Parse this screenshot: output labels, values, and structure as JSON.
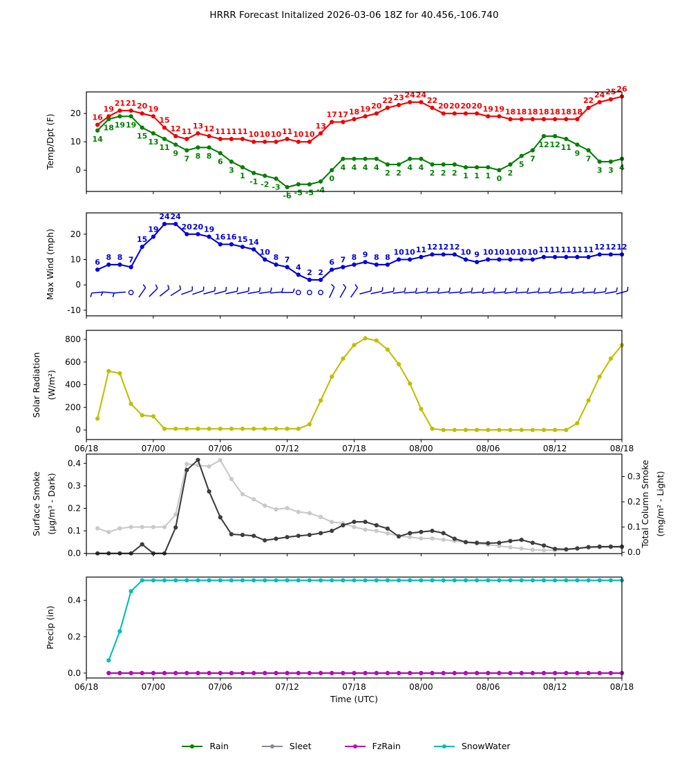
{
  "title": "HRRR Forecast Initalized 2026-03-06 18Z for 40.456,-106.740",
  "x_axis": {
    "label": "Time (UTC)",
    "tick_labels": [
      "06/18",
      "07/00",
      "07/06",
      "07/12",
      "07/18",
      "08/00",
      "08/06",
      "08/12",
      "08/18"
    ],
    "hours_total": 48
  },
  "legend": {
    "items": [
      {
        "label": "Rain",
        "color": "#008000"
      },
      {
        "label": "Sleet",
        "color": "#8c8496"
      },
      {
        "label": "FzRain",
        "color": "#bf00bf"
      },
      {
        "label": "SnowWater",
        "color": "#00bcbc"
      }
    ]
  },
  "chart_data": [
    {
      "type": "line",
      "id": "temp-dpt",
      "ylabel_lines": [
        "Temp/Dpt (F)"
      ],
      "ylim": [
        -7.5,
        27.6
      ],
      "yticks": [
        0,
        10,
        20
      ],
      "ytick_decimals": 0,
      "show_xticklabels": false,
      "point_labels": true,
      "start_hour": 1,
      "series": [
        {
          "name": "temperature",
          "color": "#ee0000",
          "label_offset": -7,
          "values": [
            16,
            19,
            21,
            21,
            20,
            19,
            15,
            12,
            11,
            13,
            12,
            11,
            11,
            11,
            10,
            10,
            10,
            11,
            10,
            10,
            13,
            17,
            17,
            18,
            19,
            20,
            22,
            23,
            24,
            24,
            22,
            20,
            20,
            20,
            20,
            19,
            19,
            18,
            18,
            18,
            18,
            18,
            18,
            18,
            22,
            24,
            25,
            26
          ]
        },
        {
          "name": "dewpoint",
          "color": "#008000",
          "label_offset": 16,
          "values": [
            14,
            18,
            19,
            19,
            15,
            13,
            11,
            9,
            7,
            8,
            8,
            6,
            3,
            1,
            -1,
            -2,
            -3,
            -6,
            -5,
            -5,
            -4,
            0,
            4,
            4,
            4,
            4,
            2,
            2,
            4,
            4,
            2,
            2,
            2,
            1,
            1,
            1,
            0,
            2,
            5,
            7,
            12,
            12,
            11,
            9,
            7,
            3,
            3,
            4
          ]
        }
      ]
    },
    {
      "type": "line+barbs",
      "id": "max-wind",
      "ylabel_lines": [
        "Max Wind (mph)"
      ],
      "ylim": [
        -12.2,
        28.4
      ],
      "yticks": [
        -10,
        0,
        10,
        20
      ],
      "ytick_decimals": 0,
      "show_xticklabels": false,
      "point_labels": true,
      "start_hour": 1,
      "series": [
        {
          "name": "max_wind",
          "color": "#0000dd",
          "label_offset": -7,
          "values": [
            6,
            8,
            8,
            7,
            15,
            19,
            24,
            24,
            20,
            20,
            19,
            16,
            16,
            15,
            14,
            10,
            8,
            7,
            4,
            2,
            2,
            6,
            7,
            8,
            9,
            8,
            8,
            10,
            10,
            11,
            12,
            12,
            12,
            10,
            9,
            10,
            10,
            10,
            10,
            10,
            11,
            11,
            11,
            11,
            11,
            12,
            12,
            12
          ]
        }
      ],
      "barbs": {
        "y_value": -3,
        "color": "#0000dd",
        "angles": [
          185,
          175,
          185,
          null,
          55,
          45,
          38,
          32,
          20,
          18,
          15,
          15,
          12,
          12,
          10,
          8,
          5,
          0,
          null,
          null,
          null,
          65,
          60,
          55,
          15,
          12,
          10,
          8,
          5,
          8,
          5,
          8,
          5,
          8,
          5,
          8,
          5,
          8,
          5,
          8,
          5,
          8,
          5,
          8,
          5,
          8,
          10,
          15
        ]
      }
    },
    {
      "type": "line",
      "id": "solar",
      "ylabel_lines": [
        "Solar Radiation",
        "(W/m²)"
      ],
      "ylim": [
        -85,
        880
      ],
      "yticks": [
        0,
        200,
        400,
        600,
        800
      ],
      "ytick_decimals": 0,
      "show_xticklabels": true,
      "point_labels": false,
      "start_hour": 1,
      "series": [
        {
          "name": "solar_radiation",
          "color": "#bfbf00",
          "values": [
            100,
            520,
            500,
            230,
            130,
            120,
            10,
            10,
            10,
            10,
            10,
            10,
            10,
            10,
            10,
            10,
            10,
            10,
            10,
            50,
            260,
            470,
            630,
            750,
            810,
            790,
            710,
            580,
            410,
            185,
            10,
            0,
            0,
            0,
            0,
            0,
            0,
            0,
            0,
            0,
            0,
            0,
            0,
            60,
            260,
            470,
            630,
            750
          ]
        }
      ]
    },
    {
      "type": "line",
      "id": "smoke",
      "ylabel_lines": [
        "Surface Smoke",
        "(μg/m³ - Dark)"
      ],
      "ylim": [
        -0.001,
        0.441
      ],
      "yticks": [
        0.0,
        0.1,
        0.2,
        0.3,
        0.4
      ],
      "ytick_decimals": 1,
      "show_xticklabels": false,
      "point_labels": false,
      "start_hour": 1,
      "right_axis": {
        "ylabel_lines": [
          "Total Column Smoke",
          "(mg/m² - Light)"
        ],
        "ylim": [
          -0.005,
          0.389
        ],
        "yticks": [
          0.0,
          0.1,
          0.2,
          0.3
        ],
        "ytick_decimals": 1
      },
      "series": [
        {
          "name": "total_column_smoke",
          "color": "#c9c9c9",
          "axis": "right",
          "values": [
            0.095,
            0.08,
            0.095,
            0.1,
            0.1,
            0.1,
            0.1,
            0.15,
            0.35,
            0.345,
            0.34,
            0.365,
            0.29,
            0.23,
            0.21,
            0.185,
            0.17,
            0.175,
            0.16,
            0.155,
            0.14,
            0.12,
            0.115,
            0.1,
            0.09,
            0.085,
            0.075,
            0.065,
            0.06,
            0.055,
            0.055,
            0.05,
            0.045,
            0.04,
            0.035,
            0.03,
            0.025,
            0.02,
            0.015,
            0.01,
            0.008,
            0.008,
            0.01,
            0.015,
            0.018,
            0.02,
            0.02,
            0.02
          ]
        },
        {
          "name": "surface_smoke",
          "color": "#3d3d3d",
          "values": [
            0.0,
            0.0,
            0.0,
            0.0,
            0.04,
            0.0,
            0.0,
            0.115,
            0.37,
            0.415,
            0.275,
            0.16,
            0.085,
            0.082,
            0.078,
            0.058,
            0.065,
            0.072,
            0.078,
            0.082,
            0.09,
            0.1,
            0.125,
            0.14,
            0.14,
            0.125,
            0.11,
            0.075,
            0.09,
            0.095,
            0.1,
            0.09,
            0.065,
            0.05,
            0.047,
            0.045,
            0.047,
            0.055,
            0.06,
            0.047,
            0.035,
            0.02,
            0.018,
            0.022,
            0.028,
            0.03,
            0.03,
            0.03
          ]
        }
      ]
    },
    {
      "type": "line",
      "id": "precip",
      "ylabel_lines": [
        "Precip (in)"
      ],
      "ylim": [
        -0.027,
        0.528
      ],
      "yticks": [
        0.0,
        0.2,
        0.4
      ],
      "ytick_decimals": 1,
      "show_xticklabels": true,
      "point_labels": false,
      "start_hour": 2,
      "series": [
        {
          "name": "rain",
          "color": "#008000",
          "values": [
            0,
            0,
            0,
            0,
            0,
            0,
            0,
            0,
            0,
            0,
            0,
            0,
            0,
            0,
            0,
            0,
            0,
            0,
            0,
            0,
            0,
            0,
            0,
            0,
            0,
            0,
            0,
            0,
            0,
            0,
            0,
            0,
            0,
            0,
            0,
            0,
            0,
            0,
            0,
            0,
            0,
            0,
            0,
            0,
            0,
            0,
            0
          ]
        },
        {
          "name": "sleet",
          "color": "#8c8496",
          "values": [
            0,
            0,
            0,
            0,
            0,
            0,
            0,
            0,
            0,
            0,
            0,
            0,
            0,
            0,
            0,
            0,
            0,
            0,
            0,
            0,
            0,
            0,
            0,
            0,
            0,
            0,
            0,
            0,
            0,
            0,
            0,
            0,
            0,
            0,
            0,
            0,
            0,
            0,
            0,
            0,
            0,
            0,
            0,
            0,
            0,
            0,
            0
          ]
        },
        {
          "name": "snowwater",
          "color": "#00bcbc",
          "values": [
            0.07,
            0.23,
            0.45,
            0.51,
            0.51,
            0.51,
            0.51,
            0.51,
            0.51,
            0.51,
            0.51,
            0.51,
            0.51,
            0.51,
            0.51,
            0.51,
            0.51,
            0.51,
            0.51,
            0.51,
            0.51,
            0.51,
            0.51,
            0.51,
            0.51,
            0.51,
            0.51,
            0.51,
            0.51,
            0.51,
            0.51,
            0.51,
            0.51,
            0.51,
            0.51,
            0.51,
            0.51,
            0.51,
            0.51,
            0.51,
            0.51,
            0.51,
            0.51,
            0.51,
            0.51,
            0.51,
            0.51
          ]
        },
        {
          "name": "fzrain",
          "color": "#bf00bf",
          "values": [
            0,
            0,
            0,
            0,
            0,
            0,
            0,
            0,
            0,
            0,
            0,
            0,
            0,
            0,
            0,
            0,
            0,
            0,
            0,
            0,
            0,
            0,
            0,
            0,
            0,
            0,
            0,
            0,
            0,
            0,
            0,
            0,
            0,
            0,
            0,
            0,
            0,
            0,
            0,
            0,
            0,
            0,
            0,
            0,
            0,
            0,
            0
          ]
        }
      ]
    }
  ]
}
